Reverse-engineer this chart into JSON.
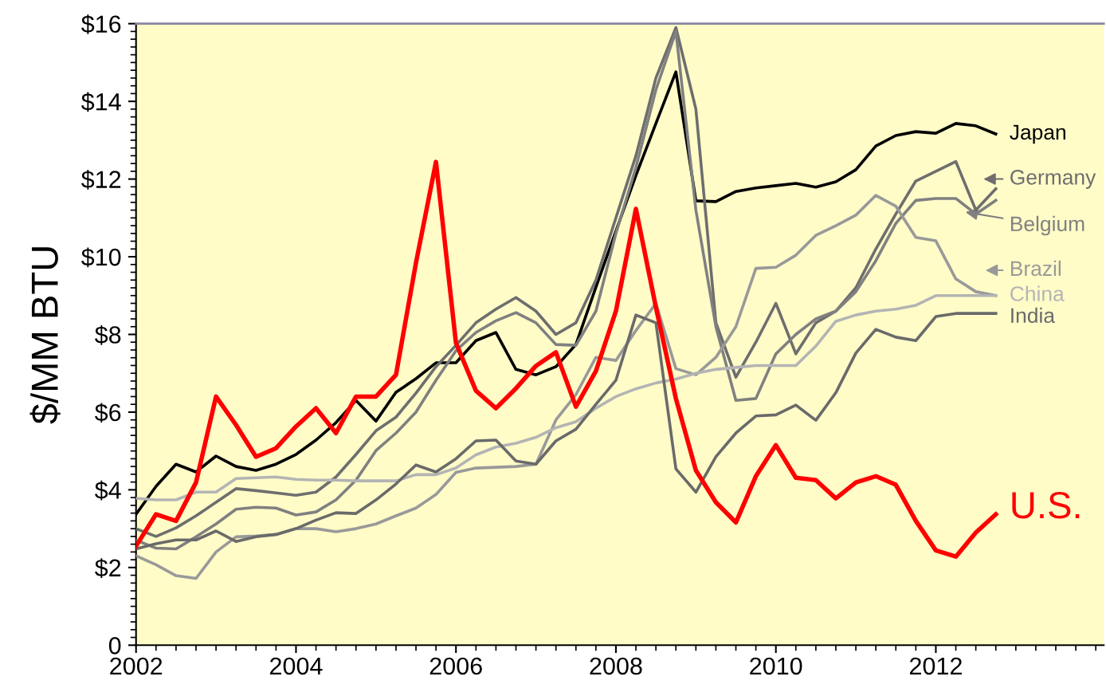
{
  "chart_data": {
    "type": "line",
    "ylabel": "$/MM BTU",
    "x": [
      2002.0,
      2002.25,
      2002.5,
      2002.75,
      2003.0,
      2003.25,
      2003.5,
      2003.75,
      2004.0,
      2004.25,
      2004.5,
      2004.75,
      2005.0,
      2005.25,
      2005.5,
      2005.75,
      2006.0,
      2006.25,
      2006.5,
      2006.75,
      2007.0,
      2007.25,
      2007.5,
      2007.75,
      2008.0,
      2008.25,
      2008.5,
      2008.75,
      2009.0,
      2009.25,
      2009.5,
      2009.75,
      2010.0,
      2010.25,
      2010.5,
      2010.75,
      2011.0,
      2011.25,
      2011.5,
      2011.75,
      2012.0,
      2012.25,
      2012.5,
      2012.75
    ],
    "xlim": [
      2002,
      2014.1
    ],
    "xticks": [
      2002,
      2004,
      2006,
      2008,
      2010,
      2012
    ],
    "ylim": [
      0,
      16
    ],
    "yticks": [
      0,
      {
        "value": 2,
        "label": "$2"
      },
      {
        "value": 4,
        "label": "$4"
      },
      {
        "value": 6,
        "label": "$6"
      },
      {
        "value": 8,
        "label": "$8"
      },
      {
        "value": 10,
        "label": "$10"
      },
      {
        "value": 12,
        "label": "$12"
      },
      {
        "value": 14,
        "label": "$14"
      },
      {
        "value": 16,
        "label": "$16"
      }
    ],
    "grid": false,
    "legend": "right",
    "marker": "none",
    "line_style": "solid",
    "series": [
      {
        "name": "Japan",
        "color": "#000000",
        "values": [
          3.37,
          4.09,
          4.66,
          4.46,
          4.87,
          4.6,
          4.5,
          4.66,
          4.91,
          5.28,
          5.73,
          6.3,
          5.77,
          6.51,
          6.86,
          7.27,
          7.27,
          7.84,
          8.05,
          7.1,
          6.96,
          7.17,
          7.74,
          9.22,
          10.66,
          12.09,
          13.43,
          14.76,
          11.44,
          11.42,
          11.68,
          11.77,
          11.83,
          11.89,
          11.79,
          11.93,
          12.24,
          12.85,
          13.12,
          13.22,
          13.18,
          13.43,
          13.37,
          13.16
        ]
      },
      {
        "name": "Germany",
        "color": "#6e6e6e",
        "values": [
          3.0,
          2.8,
          3.02,
          3.33,
          3.68,
          4.03,
          3.98,
          3.92,
          3.86,
          3.94,
          4.33,
          4.91,
          5.52,
          5.87,
          6.49,
          7.17,
          7.72,
          8.3,
          8.65,
          8.95,
          8.6,
          8.0,
          8.3,
          9.4,
          11.0,
          12.6,
          14.6,
          15.9,
          13.8,
          8.3,
          6.9,
          7.8,
          8.8,
          7.5,
          8.3,
          8.6,
          9.2,
          10.2,
          11.1,
          11.95,
          12.2,
          12.45,
          11.2,
          11.75
        ]
      },
      {
        "name": "Belgium",
        "color": "#808080",
        "values": [
          2.7,
          2.5,
          2.48,
          2.79,
          3.12,
          3.5,
          3.55,
          3.53,
          3.35,
          3.43,
          3.74,
          4.25,
          5.01,
          5.46,
          6.0,
          6.82,
          7.58,
          8.05,
          8.35,
          8.56,
          8.3,
          7.74,
          7.72,
          8.6,
          10.6,
          12.3,
          14.3,
          15.8,
          11.2,
          8.2,
          6.3,
          6.35,
          7.5,
          8.0,
          8.4,
          8.6,
          9.1,
          9.9,
          10.86,
          11.45,
          11.5,
          11.5,
          11.1,
          11.45
        ]
      },
      {
        "name": "Brazil",
        "color": "#999999",
        "values": [
          2.3,
          2.07,
          1.79,
          1.72,
          2.4,
          2.79,
          2.81,
          2.85,
          3.0,
          3.0,
          2.92,
          3.0,
          3.12,
          3.33,
          3.53,
          3.88,
          4.45,
          4.56,
          4.58,
          4.6,
          4.66,
          5.8,
          6.45,
          7.41,
          7.33,
          8.1,
          8.8,
          7.12,
          6.96,
          7.41,
          8.2,
          9.7,
          9.73,
          10.04,
          10.55,
          10.8,
          11.07,
          11.58,
          11.3,
          10.5,
          10.41,
          9.43,
          9.1,
          9.0
        ]
      },
      {
        "name": "China",
        "color": "#b4b4b4",
        "values": [
          3.78,
          3.74,
          3.74,
          3.94,
          3.94,
          4.29,
          4.31,
          4.33,
          4.27,
          4.25,
          4.25,
          4.23,
          4.23,
          4.23,
          4.39,
          4.39,
          4.56,
          4.9,
          5.1,
          5.2,
          5.35,
          5.6,
          5.75,
          6.1,
          6.4,
          6.6,
          6.75,
          6.85,
          7.0,
          7.1,
          7.15,
          7.2,
          7.2,
          7.2,
          7.7,
          8.34,
          8.5,
          8.6,
          8.65,
          8.75,
          9.0,
          9.0,
          9.0,
          9.0
        ]
      },
      {
        "name": "India",
        "color": "#6a6a6a",
        "values": [
          2.48,
          2.61,
          2.71,
          2.71,
          2.94,
          2.67,
          2.79,
          2.85,
          3.0,
          3.22,
          3.41,
          3.39,
          3.74,
          4.15,
          4.64,
          4.46,
          4.8,
          5.26,
          5.28,
          4.74,
          4.66,
          5.26,
          5.56,
          6.2,
          6.82,
          8.5,
          8.3,
          4.54,
          3.94,
          4.85,
          5.46,
          5.9,
          5.93,
          6.18,
          5.79,
          6.5,
          7.52,
          8.13,
          7.93,
          7.84,
          8.46,
          8.54,
          8.54,
          8.54
        ]
      },
      {
        "name": "U.S.",
        "color": "#ff0000",
        "values": [
          2.55,
          3.37,
          3.2,
          4.19,
          6.4,
          5.67,
          4.85,
          5.07,
          5.63,
          6.1,
          5.46,
          6.4,
          6.4,
          6.96,
          9.84,
          12.44,
          7.78,
          6.55,
          6.1,
          6.61,
          7.19,
          7.54,
          6.14,
          7.06,
          8.6,
          11.23,
          8.7,
          6.35,
          4.5,
          3.68,
          3.16,
          4.35,
          5.15,
          4.31,
          4.25,
          3.78,
          4.19,
          4.35,
          4.13,
          3.2,
          2.44,
          2.28,
          2.9,
          3.37
        ]
      }
    ]
  }
}
